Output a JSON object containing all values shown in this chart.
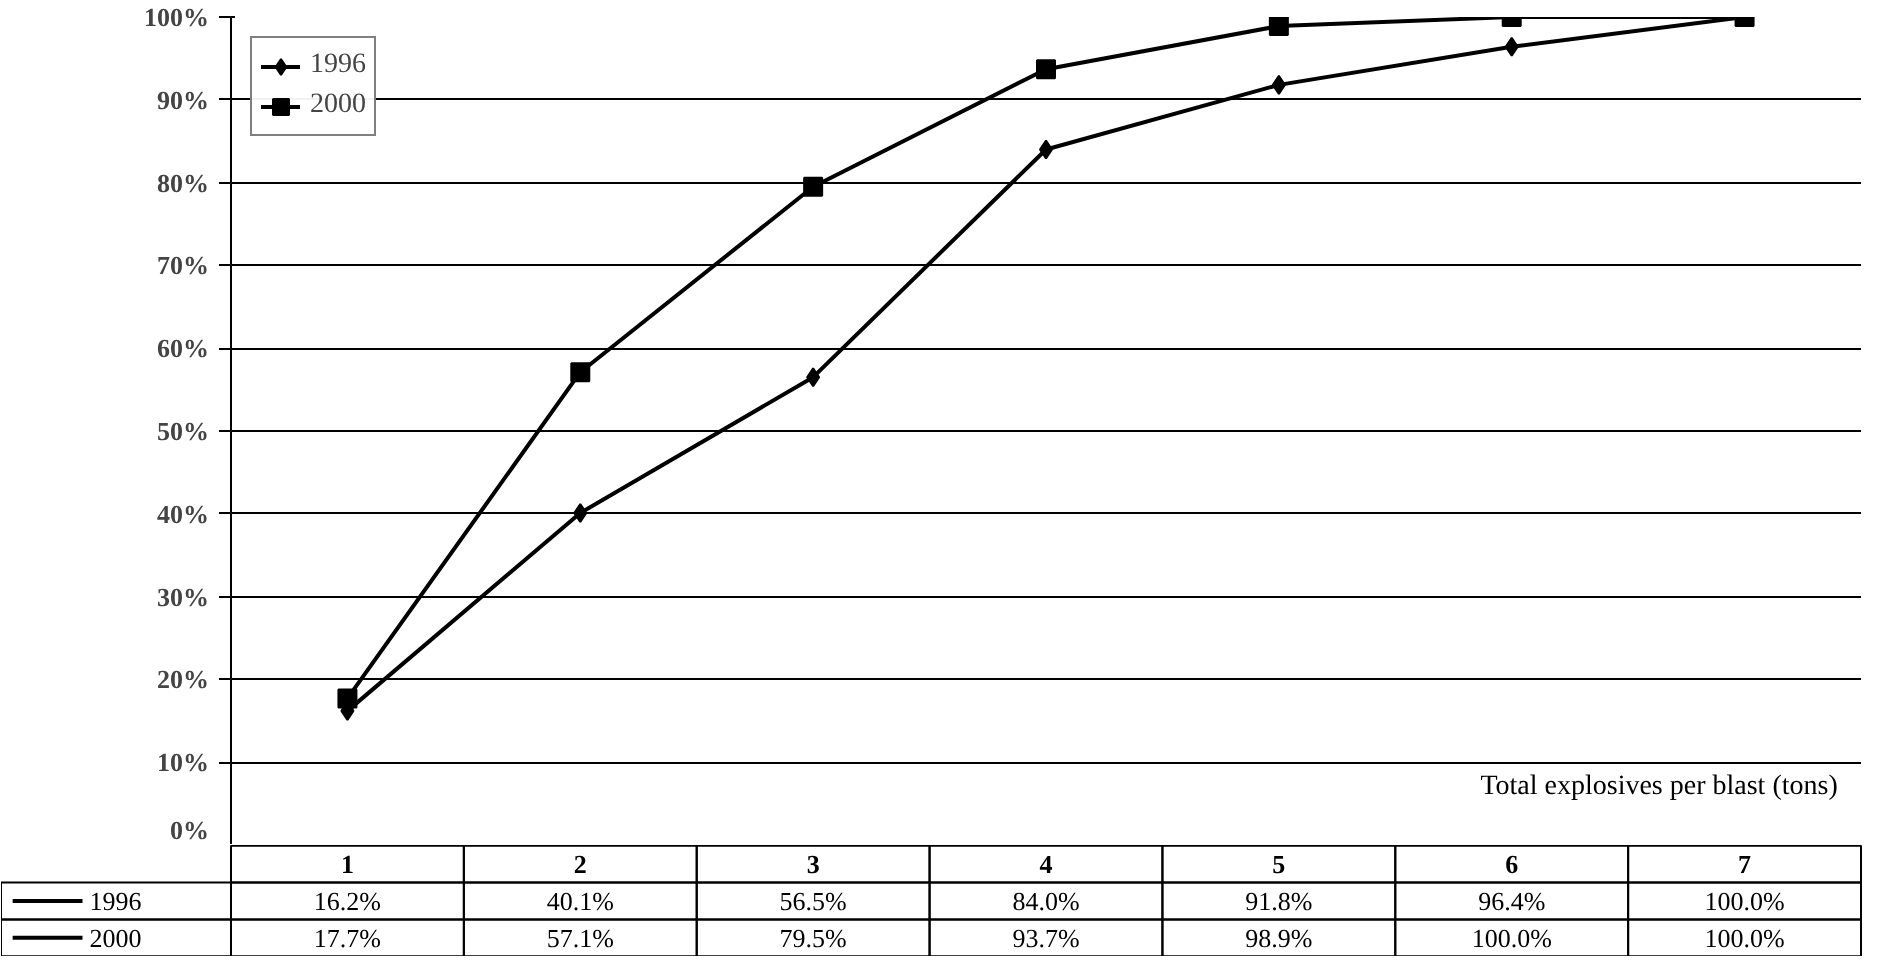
{
  "chart_data": {
    "type": "line",
    "annotations": [
      "Total explosives per blast (tons)"
    ],
    "categories": [
      "1",
      "2",
      "3",
      "4",
      "5",
      "6",
      "7"
    ],
    "series": [
      {
        "name": "1996",
        "color": "#000000",
        "marker": "diamond",
        "values": [
          16.2,
          40.1,
          56.5,
          84.0,
          91.8,
          96.4,
          100.0
        ],
        "value_labels": [
          "16.2%",
          "40.1%",
          "56.5%",
          "84.0%",
          "91.8%",
          "96.4%",
          "100.0%"
        ]
      },
      {
        "name": "2000",
        "color": "#000000",
        "marker": "square",
        "values": [
          17.7,
          57.1,
          79.5,
          93.7,
          98.9,
          100.0,
          100.0
        ],
        "value_labels": [
          "17.7%",
          "57.1%",
          "79.5%",
          "93.7%",
          "98.9%",
          "100.0%",
          "100.0%"
        ]
      }
    ],
    "ylim": [
      0,
      100
    ],
    "yticks": [
      {
        "value": 0,
        "label": "0%"
      },
      {
        "value": 10,
        "label": "10%"
      },
      {
        "value": 20,
        "label": "20%"
      },
      {
        "value": 30,
        "label": "30%"
      },
      {
        "value": 40,
        "label": "40%"
      },
      {
        "value": 50,
        "label": "50%"
      },
      {
        "value": 60,
        "label": "60%"
      },
      {
        "value": 70,
        "label": "70%"
      },
      {
        "value": 80,
        "label": "80%"
      },
      {
        "value": 90,
        "label": "90%"
      },
      {
        "value": 100,
        "label": "100%"
      }
    ],
    "grid": "y",
    "legend": "top left",
    "line_style": "solid",
    "tick_labels": "y"
  }
}
